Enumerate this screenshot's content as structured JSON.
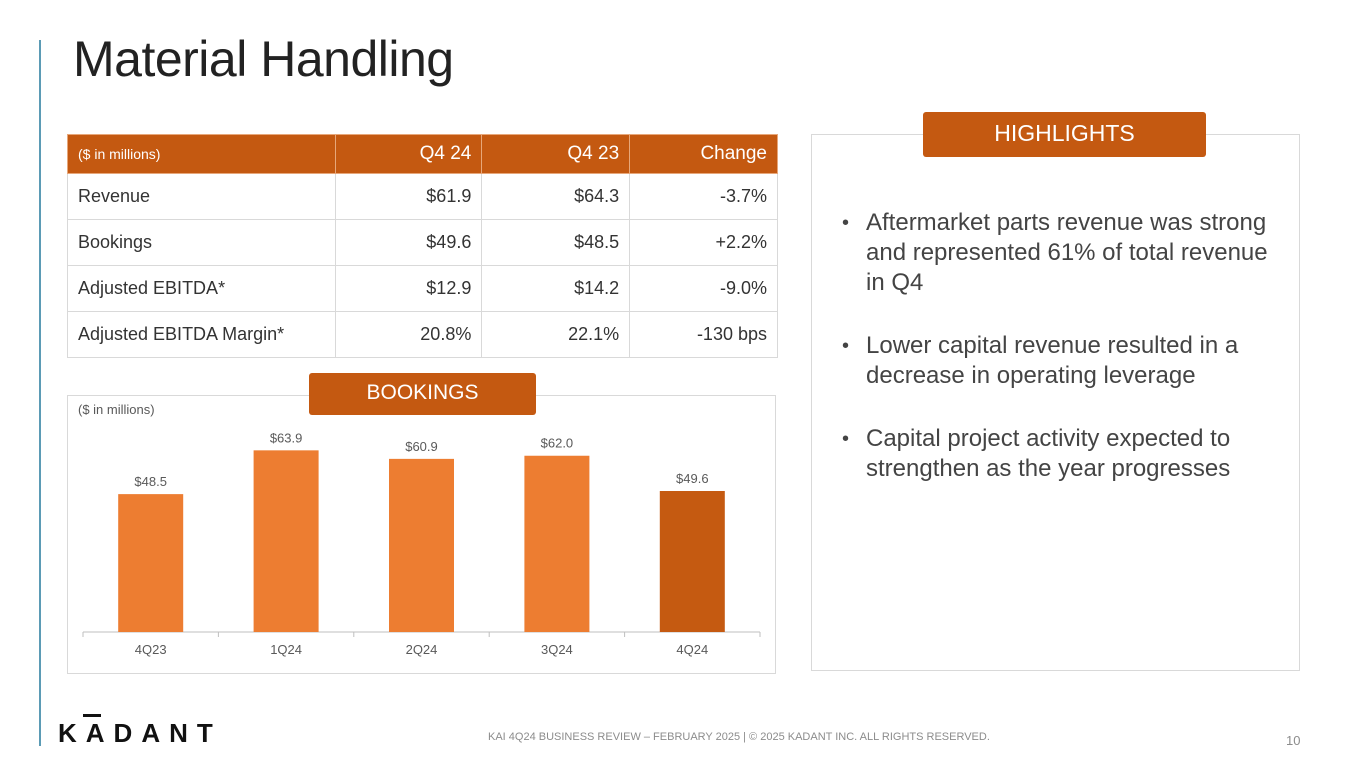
{
  "title": "Material Handling",
  "table": {
    "headers": [
      "($ in millions)",
      "Q4 24",
      "Q4 23",
      "Change"
    ],
    "rows": [
      [
        "Revenue",
        "$61.9",
        "$64.3",
        "-3.7%"
      ],
      [
        "Bookings",
        "$49.6",
        "$48.5",
        "+2.2%"
      ],
      [
        "Adjusted EBITDA*",
        "$12.9",
        "$14.2",
        "-9.0%"
      ],
      [
        "Adjusted EBITDA Margin*",
        "20.8%",
        "22.1%",
        "-130 bps"
      ]
    ]
  },
  "bookings": {
    "tab_label": "BOOKINGS",
    "unit_label": "($ in millions)"
  },
  "chart_data": {
    "type": "bar",
    "title": "BOOKINGS",
    "xlabel": "",
    "ylabel": "",
    "categories": [
      "4Q23",
      "1Q24",
      "2Q24",
      "3Q24",
      "4Q24"
    ],
    "values": [
      48.5,
      63.9,
      60.9,
      62.0,
      49.6
    ],
    "data_labels": [
      "$48.5",
      "$63.9",
      "$60.9",
      "$62.0",
      "$49.6"
    ],
    "ylim": [
      0,
      70
    ],
    "grid": false,
    "colors": [
      "#ed7d31",
      "#ed7d31",
      "#ed7d31",
      "#ed7d31",
      "#c55a11"
    ]
  },
  "highlights": {
    "tab_label": "HIGHLIGHTS",
    "bullet": "•",
    "items": [
      "Aftermarket parts revenue was strong and represented 61% of total revenue in Q4",
      "Lower capital revenue resulted in a decrease in operating leverage",
      "Capital project activity expected to strengthen as the year progresses"
    ]
  },
  "footer": {
    "logo": "KADANT",
    "text": "KAI 4Q24 BUSINESS REVIEW – FEBRUARY 2025 | © 2025 KADANT INC. ALL RIGHTS RESERVED.",
    "page_number": "10"
  },
  "colors": {
    "accent": "#c45911",
    "bar": "#ed7d31",
    "bar_highlight": "#c55a11",
    "left_rule": "#5b9bb5"
  }
}
